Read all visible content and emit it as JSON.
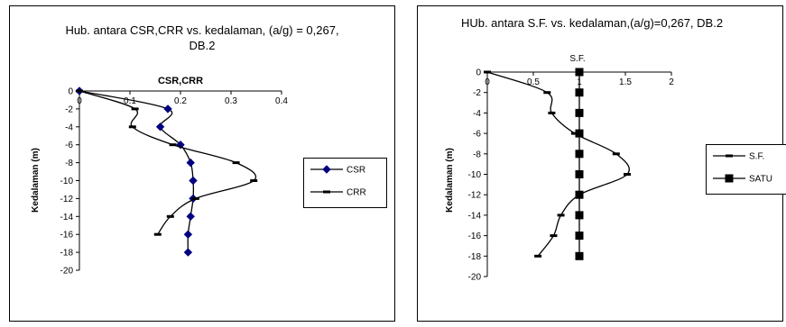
{
  "chart_data": [
    {
      "type": "line",
      "title_line1": "Hub. antara CSR,CRR vs. kedalaman, (a/g) = 0,267,",
      "title_line2": "DB.2",
      "xlabel": "CSR,CRR",
      "ylabel": "Kedalaman (m)",
      "xlim": [
        0,
        0.4
      ],
      "ylim": [
        -20,
        0
      ],
      "x_ticks": [
        "0",
        "0.1",
        "0.2",
        "0.3",
        "0.4"
      ],
      "y_ticks": [
        "0",
        "-2",
        "-4",
        "-6",
        "-8",
        "-10",
        "-12",
        "-14",
        "-16",
        "-18",
        "-20"
      ],
      "x_tick_values": [
        0,
        0.1,
        0.2,
        0.3,
        0.4
      ],
      "y_tick_values": [
        0,
        -2,
        -4,
        -6,
        -8,
        -10,
        -12,
        -14,
        -16,
        -18,
        -20
      ],
      "legend_position": "right",
      "series": [
        {
          "name": "CSR",
          "marker": "diamond",
          "color": "#000080",
          "points": [
            [
              0,
              0
            ],
            [
              0.175,
              -2
            ],
            [
              0.16,
              -4
            ],
            [
              0.2,
              -6
            ],
            [
              0.22,
              -8
            ],
            [
              0.225,
              -10
            ],
            [
              0.225,
              -12
            ],
            [
              0.22,
              -14
            ],
            [
              0.215,
              -16
            ],
            [
              0.215,
              -18
            ]
          ]
        },
        {
          "name": "CRR",
          "marker": "dash",
          "color": "#000000",
          "points": [
            [
              0,
              0
            ],
            [
              0.11,
              -2
            ],
            [
              0.105,
              -4
            ],
            [
              0.185,
              -6
            ],
            [
              0.31,
              -8
            ],
            [
              0.345,
              -10
            ],
            [
              0.23,
              -12
            ],
            [
              0.18,
              -14
            ],
            [
              0.155,
              -16
            ]
          ]
        }
      ]
    },
    {
      "type": "line",
      "title": "HUb. antara S.F. vs. kedalaman,(a/g)=0,267,  DB.2",
      "xlabel": "S.F.",
      "ylabel": "Kedalaman (m)",
      "xlim": [
        0,
        2
      ],
      "ylim": [
        -20,
        0
      ],
      "x_ticks": [
        "0",
        "0.5",
        "1",
        "1.5",
        "2"
      ],
      "y_ticks": [
        "0",
        "-2",
        "-4",
        "-6",
        "-8",
        "-10",
        "-12",
        "-14",
        "-16",
        "-18",
        "-20"
      ],
      "x_tick_values": [
        0,
        0.5,
        1,
        1.5,
        2
      ],
      "y_tick_values": [
        0,
        -2,
        -4,
        -6,
        -8,
        -10,
        -12,
        -14,
        -16,
        -18,
        -20
      ],
      "legend_position": "right",
      "series": [
        {
          "name": "S.F.",
          "marker": "dash",
          "color": "#000000",
          "points": [
            [
              0,
              0
            ],
            [
              0.65,
              -2
            ],
            [
              0.7,
              -4
            ],
            [
              0.95,
              -6
            ],
            [
              1.4,
              -8
            ],
            [
              1.52,
              -10
            ],
            [
              1.0,
              -12
            ],
            [
              0.8,
              -14
            ],
            [
              0.72,
              -16
            ],
            [
              0.55,
              -18
            ]
          ]
        },
        {
          "name": "SATU",
          "marker": "square",
          "color": "#000000",
          "points": [
            [
              1,
              0
            ],
            [
              1,
              -2
            ],
            [
              1,
              -4
            ],
            [
              1,
              -6
            ],
            [
              1,
              -8
            ],
            [
              1,
              -10
            ],
            [
              1,
              -12
            ],
            [
              1,
              -14
            ],
            [
              1,
              -16
            ],
            [
              1,
              -18
            ]
          ]
        }
      ]
    }
  ]
}
